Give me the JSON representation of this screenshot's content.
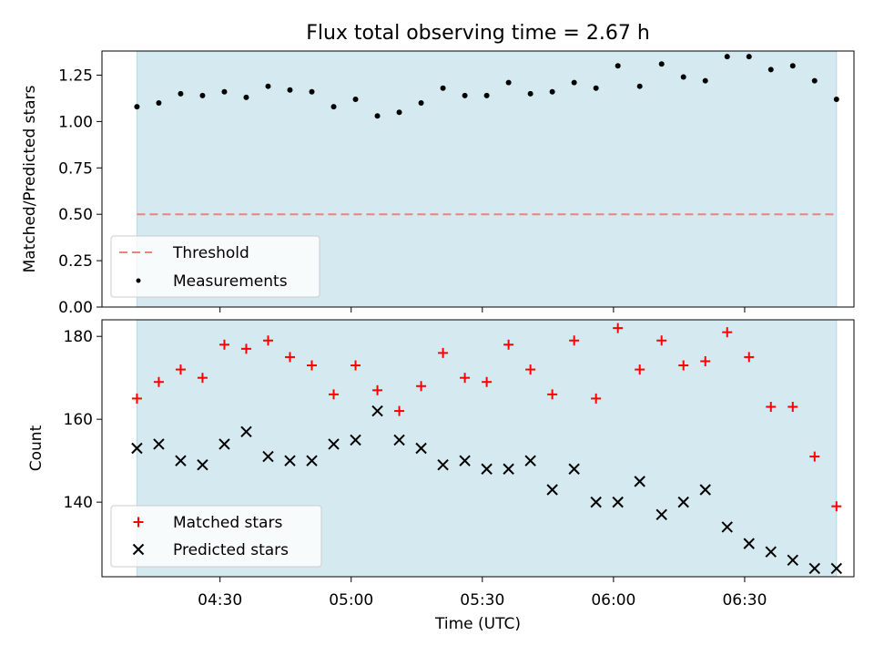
{
  "figure": {
    "title": "Flux total observing time = 2.67 h",
    "xlabel": "Time (UTC)"
  },
  "colors": {
    "band": "#d4eaf0",
    "band_edge": "#b3dae6",
    "threshold": "#f08080",
    "matched": "#ff0000",
    "predicted": "#000000"
  },
  "chart_data": [
    {
      "type": "scatter",
      "title": "Flux total observing time = 2.67 h",
      "ylabel": "Matched/Predicted stars",
      "ylim": [
        0,
        1.38
      ],
      "yticks": [
        "0.00",
        "0.25",
        "0.50",
        "0.75",
        "1.00",
        "1.25"
      ],
      "xlim": [
        "04:03",
        "06:55"
      ],
      "xticks": [
        "04:30",
        "05:00",
        "05:30",
        "06:00",
        "06:30"
      ],
      "observing_window": [
        "04:11",
        "06:51"
      ],
      "legend_position": "lower-left",
      "threshold": {
        "name": "Threshold",
        "value": 0.5
      },
      "series": [
        {
          "name": "Measurements",
          "x": [
            "04:11",
            "04:16",
            "04:21",
            "04:26",
            "04:31",
            "04:36",
            "04:41",
            "04:46",
            "04:51",
            "04:56",
            "05:01",
            "05:06",
            "05:11",
            "05:16",
            "05:21",
            "05:26",
            "05:31",
            "05:36",
            "05:41",
            "05:46",
            "05:51",
            "05:56",
            "06:01",
            "06:06",
            "06:11",
            "06:16",
            "06:21",
            "06:26",
            "06:31",
            "06:36",
            "06:41",
            "06:46",
            "06:51"
          ],
          "y": [
            1.08,
            1.1,
            1.15,
            1.14,
            1.16,
            1.13,
            1.19,
            1.17,
            1.16,
            1.08,
            1.12,
            1.03,
            1.05,
            1.1,
            1.18,
            1.14,
            1.14,
            1.21,
            1.15,
            1.16,
            1.21,
            1.18,
            1.3,
            1.19,
            1.31,
            1.24,
            1.22,
            1.35,
            1.35,
            1.28,
            1.3,
            1.22,
            1.12
          ]
        }
      ]
    },
    {
      "type": "scatter",
      "ylabel": "Count",
      "ylim": [
        122,
        184
      ],
      "yticks": [
        "140",
        "160",
        "180"
      ],
      "xlim": [
        "04:03",
        "06:55"
      ],
      "xticks": [
        "04:30",
        "05:00",
        "05:30",
        "06:00",
        "06:30"
      ],
      "observing_window": [
        "04:11",
        "06:51"
      ],
      "legend_position": "lower-left",
      "series": [
        {
          "name": "Matched stars",
          "marker": "+",
          "x": [
            "04:11",
            "04:16",
            "04:21",
            "04:26",
            "04:31",
            "04:36",
            "04:41",
            "04:46",
            "04:51",
            "04:56",
            "05:01",
            "05:06",
            "05:11",
            "05:16",
            "05:21",
            "05:26",
            "05:31",
            "05:36",
            "05:41",
            "05:46",
            "05:51",
            "05:56",
            "06:01",
            "06:06",
            "06:11",
            "06:16",
            "06:21",
            "06:26",
            "06:31",
            "06:36",
            "06:41",
            "06:46",
            "06:51"
          ],
          "y": [
            165,
            169,
            172,
            170,
            178,
            177,
            179,
            175,
            173,
            166,
            173,
            167,
            162,
            168,
            176,
            170,
            169,
            178,
            172,
            166,
            179,
            165,
            182,
            172,
            179,
            173,
            174,
            181,
            175,
            163,
            163,
            151,
            139
          ]
        },
        {
          "name": "Predicted stars",
          "marker": "x",
          "x": [
            "04:11",
            "04:16",
            "04:21",
            "04:26",
            "04:31",
            "04:36",
            "04:41",
            "04:46",
            "04:51",
            "04:56",
            "05:01",
            "05:06",
            "05:11",
            "05:16",
            "05:21",
            "05:26",
            "05:31",
            "05:36",
            "05:41",
            "05:46",
            "05:51",
            "05:56",
            "06:01",
            "06:06",
            "06:11",
            "06:16",
            "06:21",
            "06:26",
            "06:31",
            "06:36",
            "06:41",
            "06:46",
            "06:51"
          ],
          "y": [
            153,
            154,
            150,
            149,
            154,
            157,
            151,
            150,
            150,
            154,
            155,
            162,
            155,
            153,
            149,
            150,
            148,
            148,
            150,
            143,
            148,
            140,
            140,
            145,
            137,
            140,
            143,
            134,
            130,
            128,
            126,
            124,
            124
          ]
        }
      ]
    }
  ]
}
